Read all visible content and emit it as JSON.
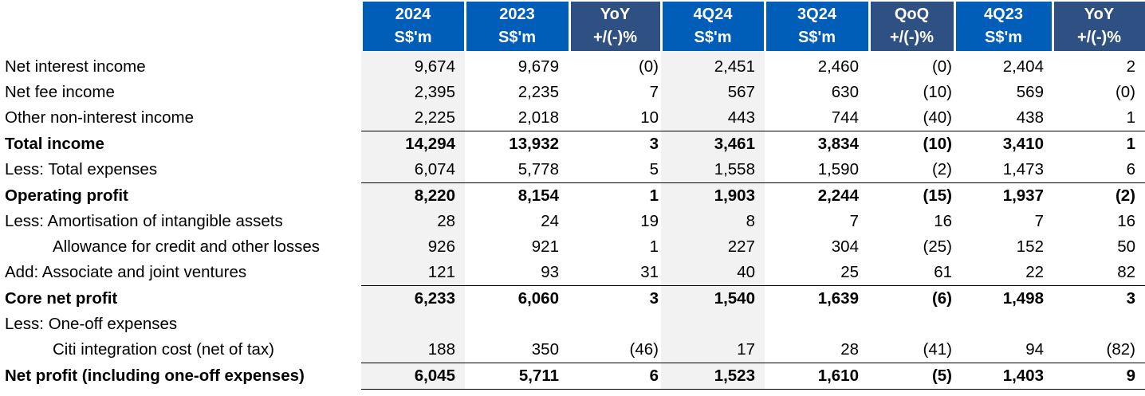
{
  "colors": {
    "header_blue": "#005EB8",
    "header_dark": "#2F5083",
    "shade_grey": "#F2F2F2"
  },
  "columns": [
    {
      "line1": "2024",
      "line2": "S$'m",
      "style": "blue",
      "shaded": true
    },
    {
      "line1": "2023",
      "line2": "S$'m",
      "style": "blue",
      "shaded": false
    },
    {
      "line1": "YoY",
      "line2": "+/(-)%",
      "style": "dark",
      "shaded": false
    },
    {
      "line1": "4Q24",
      "line2": "S$'m",
      "style": "blue",
      "shaded": true
    },
    {
      "line1": "3Q24",
      "line2": "S$'m",
      "style": "blue",
      "shaded": false
    },
    {
      "line1": "QoQ",
      "line2": "+/(-)%",
      "style": "dark",
      "shaded": false
    },
    {
      "line1": "4Q23",
      "line2": "S$'m",
      "style": "blue",
      "shaded": false
    },
    {
      "line1": "YoY",
      "line2": "+/(-)%",
      "style": "dark",
      "shaded": false
    }
  ],
  "rows": [
    {
      "label": "Net interest income",
      "bold": false,
      "indent": false,
      "rule_above": false,
      "values": [
        "9,674",
        "9,679",
        "(0)",
        "2,451",
        "2,460",
        "(0)",
        "2,404",
        "2"
      ]
    },
    {
      "label": "Net fee income",
      "bold": false,
      "indent": false,
      "rule_above": false,
      "values": [
        "2,395",
        "2,235",
        "7",
        "567",
        "630",
        "(10)",
        "569",
        "(0)"
      ]
    },
    {
      "label": "Other non-interest income",
      "bold": false,
      "indent": false,
      "rule_above": false,
      "values": [
        "2,225",
        "2,018",
        "10",
        "443",
        "744",
        "(40)",
        "438",
        "1"
      ]
    },
    {
      "label": "Total income",
      "bold": true,
      "indent": false,
      "rule_above": true,
      "values": [
        "14,294",
        "13,932",
        "3",
        "3,461",
        "3,834",
        "(10)",
        "3,410",
        "1"
      ]
    },
    {
      "label": "Less: Total expenses",
      "bold": false,
      "indent": false,
      "rule_above": false,
      "values": [
        "6,074",
        "5,778",
        "5",
        "1,558",
        "1,590",
        "(2)",
        "1,473",
        "6"
      ]
    },
    {
      "label": "Operating profit",
      "bold": true,
      "indent": false,
      "rule_above": true,
      "values": [
        "8,220",
        "8,154",
        "1",
        "1,903",
        "2,244",
        "(15)",
        "1,937",
        "(2)"
      ]
    },
    {
      "label": "Less: Amortisation of intangible assets",
      "bold": false,
      "indent": false,
      "rule_above": false,
      "values": [
        "28",
        "24",
        "19",
        "8",
        "7",
        "16",
        "7",
        "16"
      ]
    },
    {
      "label": "Allowance for credit and other losses",
      "bold": false,
      "indent": true,
      "rule_above": false,
      "values": [
        "926",
        "921",
        "1",
        "227",
        "304",
        "(25)",
        "152",
        "50"
      ]
    },
    {
      "label": "Add:  Associate and joint ventures",
      "bold": false,
      "indent": false,
      "rule_above": false,
      "values": [
        "121",
        "93",
        "31",
        "40",
        "25",
        "61",
        "22",
        "82"
      ]
    },
    {
      "label": "Core net profit",
      "bold": true,
      "indent": false,
      "rule_above": true,
      "values": [
        "6,233",
        "6,060",
        "3",
        "1,540",
        "1,639",
        "(6)",
        "1,498",
        "3"
      ]
    },
    {
      "label": "Less: One-off expenses",
      "bold": false,
      "indent": false,
      "rule_above": false,
      "values": [
        "",
        "",
        "",
        "",
        "",
        "",
        "",
        ""
      ]
    },
    {
      "label": "Citi integration cost (net of tax)",
      "bold": false,
      "indent": true,
      "rule_above": false,
      "values": [
        "188",
        "350",
        "(46)",
        "17",
        "28",
        "(41)",
        "94",
        "(82)"
      ]
    },
    {
      "label": "Net profit (including one-off expenses)",
      "bold": true,
      "indent": false,
      "rule_above": true,
      "values": [
        "6,045",
        "5,711",
        "6",
        "1,523",
        "1,610",
        "(5)",
        "1,403",
        "9"
      ]
    }
  ]
}
